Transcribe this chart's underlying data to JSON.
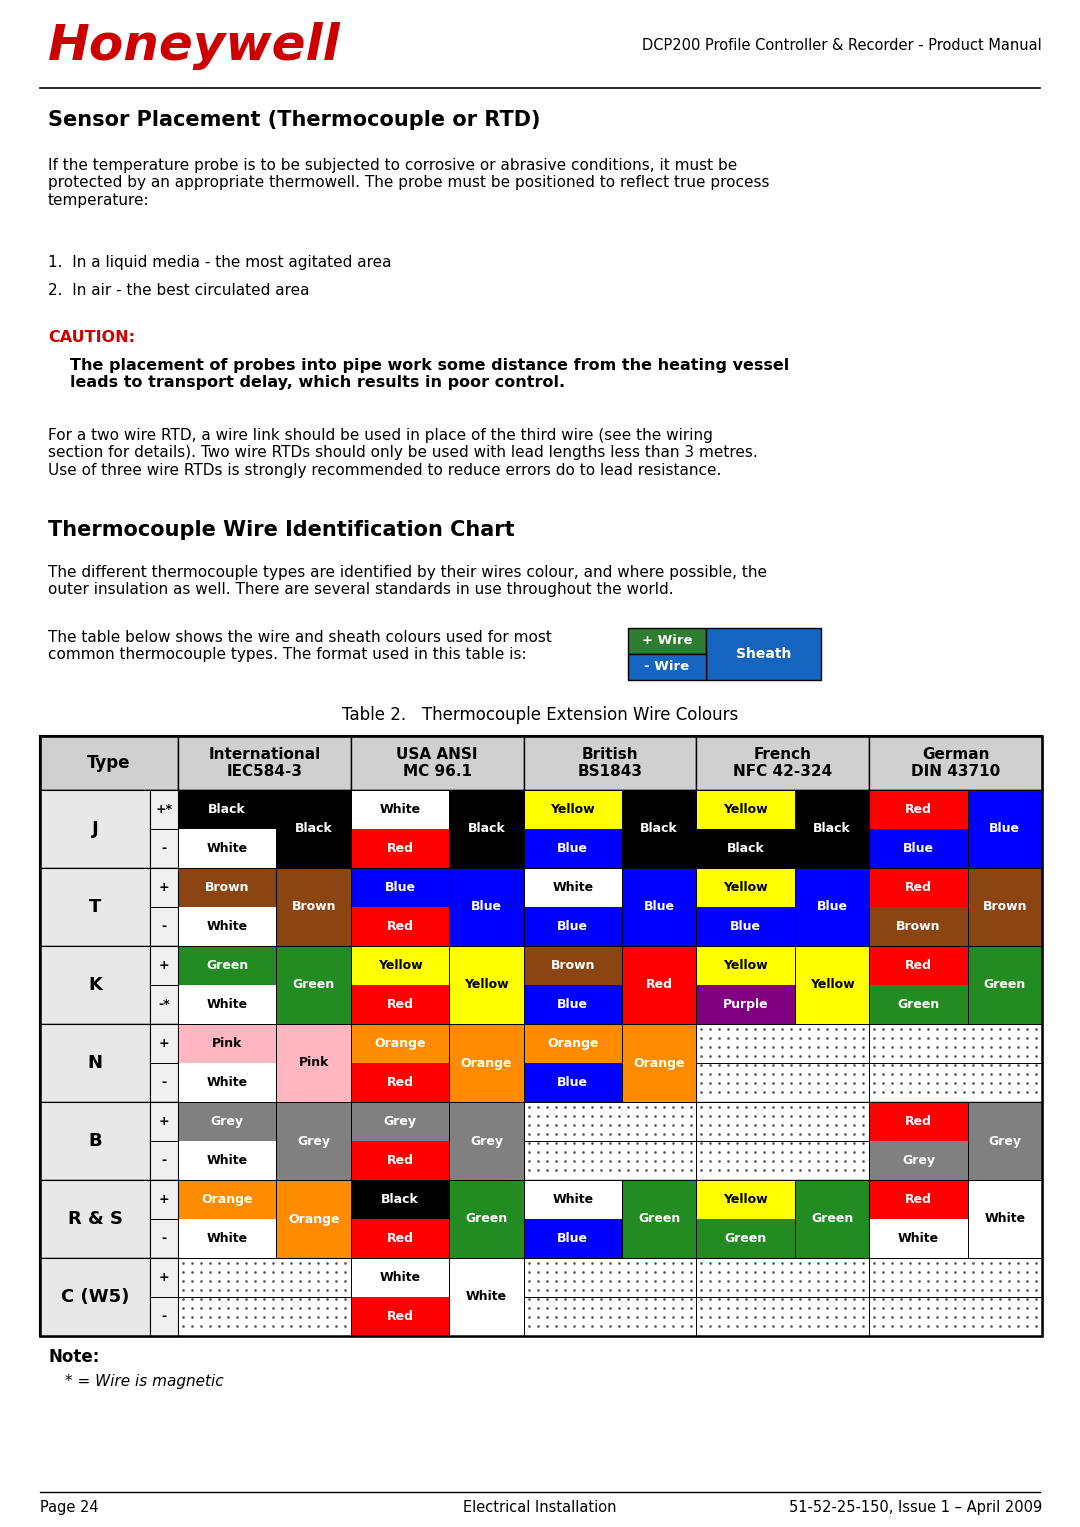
{
  "page_title": "DCP200 Profile Controller & Recorder - Product Manual",
  "honeywell_color": "#CC0000",
  "section_title": "Sensor Placement (Thermocouple or RTD)",
  "body_text1": "If the temperature probe is to be subjected to corrosive or abrasive conditions, it must be\nprotected by an appropriate thermowell. The probe must be positioned to reflect true process\ntemperature:",
  "list_item1": "1.  In a liquid media - the most agitated area",
  "list_item2": "2.  In air - the best circulated area",
  "caution_label": "CAUTION:",
  "caution_text": "The placement of probes into pipe work some distance from the heating vessel\nleads to transport delay, which results in poor control.",
  "body_text2": "For a two wire RTD, a wire link should be used in place of the third wire (see the wiring\nsection for details). Two wire RTDs should only be used with lead lengths less than 3 metres.\nUse of three wire RTDs is strongly recommended to reduce errors do to lead resistance.",
  "section_title2": "Thermocouple Wire Identification Chart",
  "body_text3": "The different thermocouple types are identified by their wires colour, and where possible, the\nouter insulation as well. There are several standards in use throughout the world.",
  "body_text4": "The table below shows the wire and sheath colours used for most\ncommon thermocouple types. The format used in this table is:",
  "table_title": "Table 2.   Thermocouple Extension Wire Colours",
  "footer_left": "Page 24",
  "footer_center": "Electrical Installation",
  "footer_right": "51-52-25-150, Issue 1 – April 2009",
  "col_headers": [
    "Type",
    "International\nIEC584-3",
    "USA ANSI\nMC 96.1",
    "British\nBS1843",
    "French\nNFC 42-324",
    "German\nDIN 43710"
  ],
  "table_data": {
    "J": {
      "plus_sym": "+*",
      "minus_sym": "-",
      "IEC": {
        "plus": {
          "label": "Black",
          "bg": "#000000",
          "fg": "#ffffff"
        },
        "minus": {
          "label": "White",
          "bg": "#ffffff",
          "fg": "#000000"
        },
        "sheath": {
          "label": "Black",
          "bg": "#000000",
          "fg": "#ffffff"
        }
      },
      "ANSI": {
        "plus": {
          "label": "White",
          "bg": "#ffffff",
          "fg": "#000000"
        },
        "minus": {
          "label": "Red",
          "bg": "#ff0000",
          "fg": "#ffffff"
        },
        "sheath": {
          "label": "Black",
          "bg": "#000000",
          "fg": "#ffffff"
        }
      },
      "British": {
        "plus": {
          "label": "Yellow",
          "bg": "#ffff00",
          "fg": "#000000"
        },
        "minus": {
          "label": "Blue",
          "bg": "#0000ff",
          "fg": "#ffffff"
        },
        "sheath": {
          "label": "Black",
          "bg": "#000000",
          "fg": "#ffffff"
        }
      },
      "French": {
        "plus": {
          "label": "Yellow",
          "bg": "#ffff00",
          "fg": "#000000"
        },
        "minus": {
          "label": "Black",
          "bg": "#000000",
          "fg": "#ffffff"
        },
        "sheath": {
          "label": "Black",
          "bg": "#000000",
          "fg": "#ffffff"
        }
      },
      "German": {
        "plus": {
          "label": "Red",
          "bg": "#ff0000",
          "fg": "#ffffff"
        },
        "minus": {
          "label": "Blue",
          "bg": "#0000ff",
          "fg": "#ffffff"
        },
        "sheath": {
          "label": "Blue",
          "bg": "#0000ff",
          "fg": "#ffffff"
        }
      }
    },
    "T": {
      "plus_sym": "+",
      "minus_sym": "-",
      "IEC": {
        "plus": {
          "label": "Brown",
          "bg": "#8B4513",
          "fg": "#ffffff"
        },
        "minus": {
          "label": "White",
          "bg": "#ffffff",
          "fg": "#000000"
        },
        "sheath": {
          "label": "Brown",
          "bg": "#8B4513",
          "fg": "#ffffff"
        }
      },
      "ANSI": {
        "plus": {
          "label": "Blue",
          "bg": "#0000ff",
          "fg": "#ffffff"
        },
        "minus": {
          "label": "Red",
          "bg": "#ff0000",
          "fg": "#ffffff"
        },
        "sheath": {
          "label": "Blue",
          "bg": "#0000ff",
          "fg": "#ffffff"
        }
      },
      "British": {
        "plus": {
          "label": "White",
          "bg": "#ffffff",
          "fg": "#000000"
        },
        "minus": {
          "label": "Blue",
          "bg": "#0000ff",
          "fg": "#ffffff"
        },
        "sheath": {
          "label": "Blue",
          "bg": "#0000ff",
          "fg": "#ffffff"
        }
      },
      "French": {
        "plus": {
          "label": "Yellow",
          "bg": "#ffff00",
          "fg": "#000000"
        },
        "minus": {
          "label": "Blue",
          "bg": "#0000ff",
          "fg": "#ffffff"
        },
        "sheath": {
          "label": "Blue",
          "bg": "#0000ff",
          "fg": "#ffffff"
        }
      },
      "German": {
        "plus": {
          "label": "Red",
          "bg": "#ff0000",
          "fg": "#ffffff"
        },
        "minus": {
          "label": "Brown",
          "bg": "#8B4513",
          "fg": "#ffffff"
        },
        "sheath": {
          "label": "Brown",
          "bg": "#8B4513",
          "fg": "#ffffff"
        }
      }
    },
    "K": {
      "plus_sym": "+",
      "minus_sym": "-*",
      "IEC": {
        "plus": {
          "label": "Green",
          "bg": "#228B22",
          "fg": "#ffffff"
        },
        "minus": {
          "label": "White",
          "bg": "#ffffff",
          "fg": "#000000"
        },
        "sheath": {
          "label": "Green",
          "bg": "#228B22",
          "fg": "#ffffff"
        }
      },
      "ANSI": {
        "plus": {
          "label": "Yellow",
          "bg": "#ffff00",
          "fg": "#000000"
        },
        "minus": {
          "label": "Red",
          "bg": "#ff0000",
          "fg": "#ffffff"
        },
        "sheath": {
          "label": "Yellow",
          "bg": "#ffff00",
          "fg": "#000000"
        }
      },
      "British": {
        "plus": {
          "label": "Brown",
          "bg": "#8B4513",
          "fg": "#ffffff"
        },
        "minus": {
          "label": "Blue",
          "bg": "#0000ff",
          "fg": "#ffffff"
        },
        "sheath": {
          "label": "Red",
          "bg": "#ff0000",
          "fg": "#ffffff"
        }
      },
      "French": {
        "plus": {
          "label": "Yellow",
          "bg": "#ffff00",
          "fg": "#000000"
        },
        "minus": {
          "label": "Purple",
          "bg": "#800080",
          "fg": "#ffffff"
        },
        "sheath": {
          "label": "Yellow",
          "bg": "#ffff00",
          "fg": "#000000"
        }
      },
      "German": {
        "plus": {
          "label": "Red",
          "bg": "#ff0000",
          "fg": "#ffffff"
        },
        "minus": {
          "label": "Green",
          "bg": "#228B22",
          "fg": "#ffffff"
        },
        "sheath": {
          "label": "Green",
          "bg": "#228B22",
          "fg": "#ffffff"
        }
      }
    },
    "N": {
      "plus_sym": "+",
      "minus_sym": "-",
      "IEC": {
        "plus": {
          "label": "Pink",
          "bg": "#FFB6C1",
          "fg": "#000000"
        },
        "minus": {
          "label": "White",
          "bg": "#ffffff",
          "fg": "#000000"
        },
        "sheath": {
          "label": "Pink",
          "bg": "#FFB6C1",
          "fg": "#000000"
        }
      },
      "ANSI": {
        "plus": {
          "label": "Orange",
          "bg": "#FF8C00",
          "fg": "#ffffff"
        },
        "minus": {
          "label": "Red",
          "bg": "#ff0000",
          "fg": "#ffffff"
        },
        "sheath": {
          "label": "Orange",
          "bg": "#FF8C00",
          "fg": "#ffffff"
        }
      },
      "British": {
        "plus": {
          "label": "Orange",
          "bg": "#FF8C00",
          "fg": "#ffffff"
        },
        "minus": {
          "label": "Blue",
          "bg": "#0000ff",
          "fg": "#ffffff"
        },
        "sheath": {
          "label": "Orange",
          "bg": "#FF8C00",
          "fg": "#ffffff"
        }
      },
      "French": null,
      "German": null
    },
    "B": {
      "plus_sym": "+",
      "minus_sym": "-",
      "IEC": {
        "plus": {
          "label": "Grey",
          "bg": "#808080",
          "fg": "#ffffff"
        },
        "minus": {
          "label": "White",
          "bg": "#ffffff",
          "fg": "#000000"
        },
        "sheath": {
          "label": "Grey",
          "bg": "#808080",
          "fg": "#ffffff"
        }
      },
      "ANSI": {
        "plus": {
          "label": "Grey",
          "bg": "#808080",
          "fg": "#ffffff"
        },
        "minus": {
          "label": "Red",
          "bg": "#ff0000",
          "fg": "#ffffff"
        },
        "sheath": {
          "label": "Grey",
          "bg": "#808080",
          "fg": "#ffffff"
        }
      },
      "British": null,
      "French": null,
      "German": {
        "plus": {
          "label": "Red",
          "bg": "#ff0000",
          "fg": "#ffffff"
        },
        "minus": {
          "label": "Grey",
          "bg": "#808080",
          "fg": "#ffffff"
        },
        "sheath": {
          "label": "Grey",
          "bg": "#808080",
          "fg": "#ffffff"
        }
      }
    },
    "R&S": {
      "plus_sym": "+",
      "minus_sym": "-",
      "IEC": {
        "plus": {
          "label": "Orange",
          "bg": "#FF8C00",
          "fg": "#ffffff"
        },
        "minus": {
          "label": "White",
          "bg": "#ffffff",
          "fg": "#000000"
        },
        "sheath": {
          "label": "Orange",
          "bg": "#FF8C00",
          "fg": "#ffffff"
        }
      },
      "ANSI": {
        "plus": {
          "label": "Black",
          "bg": "#000000",
          "fg": "#ffffff"
        },
        "minus": {
          "label": "Red",
          "bg": "#ff0000",
          "fg": "#ffffff"
        },
        "sheath": {
          "label": "Green",
          "bg": "#228B22",
          "fg": "#ffffff"
        }
      },
      "British": {
        "plus": {
          "label": "White",
          "bg": "#ffffff",
          "fg": "#000000"
        },
        "minus": {
          "label": "Blue",
          "bg": "#0000ff",
          "fg": "#ffffff"
        },
        "sheath": {
          "label": "Green",
          "bg": "#228B22",
          "fg": "#ffffff"
        }
      },
      "French": {
        "plus": {
          "label": "Yellow",
          "bg": "#ffff00",
          "fg": "#000000"
        },
        "minus": {
          "label": "Green",
          "bg": "#228B22",
          "fg": "#ffffff"
        },
        "sheath": {
          "label": "Green",
          "bg": "#228B22",
          "fg": "#ffffff"
        }
      },
      "German": {
        "plus": {
          "label": "Red",
          "bg": "#ff0000",
          "fg": "#ffffff"
        },
        "minus": {
          "label": "White",
          "bg": "#ffffff",
          "fg": "#000000"
        },
        "sheath": {
          "label": "White",
          "bg": "#ffffff",
          "fg": "#000000"
        }
      }
    },
    "C(W5)": {
      "plus_sym": "+",
      "minus_sym": "-",
      "IEC": null,
      "ANSI": {
        "plus": {
          "label": "White",
          "bg": "#ffffff",
          "fg": "#000000"
        },
        "minus": {
          "label": "Red",
          "bg": "#ff0000",
          "fg": "#ffffff"
        },
        "sheath": {
          "label": "White",
          "bg": "#ffffff",
          "fg": "#000000"
        }
      },
      "British": null,
      "French": null,
      "German": null
    }
  },
  "type_labels": [
    "J",
    "T",
    "K",
    "N",
    "B",
    "R & S",
    "C (W5)"
  ],
  "type_keys": [
    "J",
    "T",
    "K",
    "N",
    "B",
    "R&S",
    "C(W5)"
  ]
}
